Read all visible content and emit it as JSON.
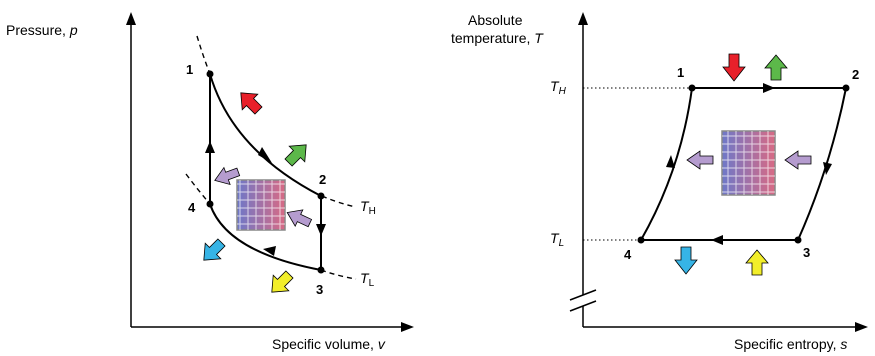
{
  "pv_diagram": {
    "y_axis_label": "Pressure, ",
    "y_axis_symbol": "p",
    "x_axis_label": "Specific volume, ",
    "x_axis_symbol": "v",
    "points": [
      "1",
      "2",
      "3",
      "4"
    ],
    "isotherm_high": {
      "symbol": "T",
      "subscript": "H"
    },
    "isotherm_low": {
      "symbol": "T",
      "subscript": "L"
    }
  },
  "ts_diagram": {
    "y_axis_label_line1": "Absolute",
    "y_axis_label_line2": "temperature, ",
    "y_axis_symbol": "T",
    "x_axis_label": "Specific entropy, ",
    "x_axis_symbol": "s",
    "points": [
      "1",
      "2",
      "3",
      "4"
    ],
    "level_high": {
      "symbol": "T",
      "subscript": "H"
    },
    "level_low": {
      "symbol": "T",
      "subscript": "L"
    }
  },
  "colors": {
    "heat_in": "#e8202a",
    "work_out": "#5cb84a",
    "heat_out": "#36b4e6",
    "work_in": "#f2ee2a",
    "internal_flow": "#b59ccf",
    "reservoir_cold": "#6e78c8",
    "reservoir_hot": "#d86a84"
  }
}
